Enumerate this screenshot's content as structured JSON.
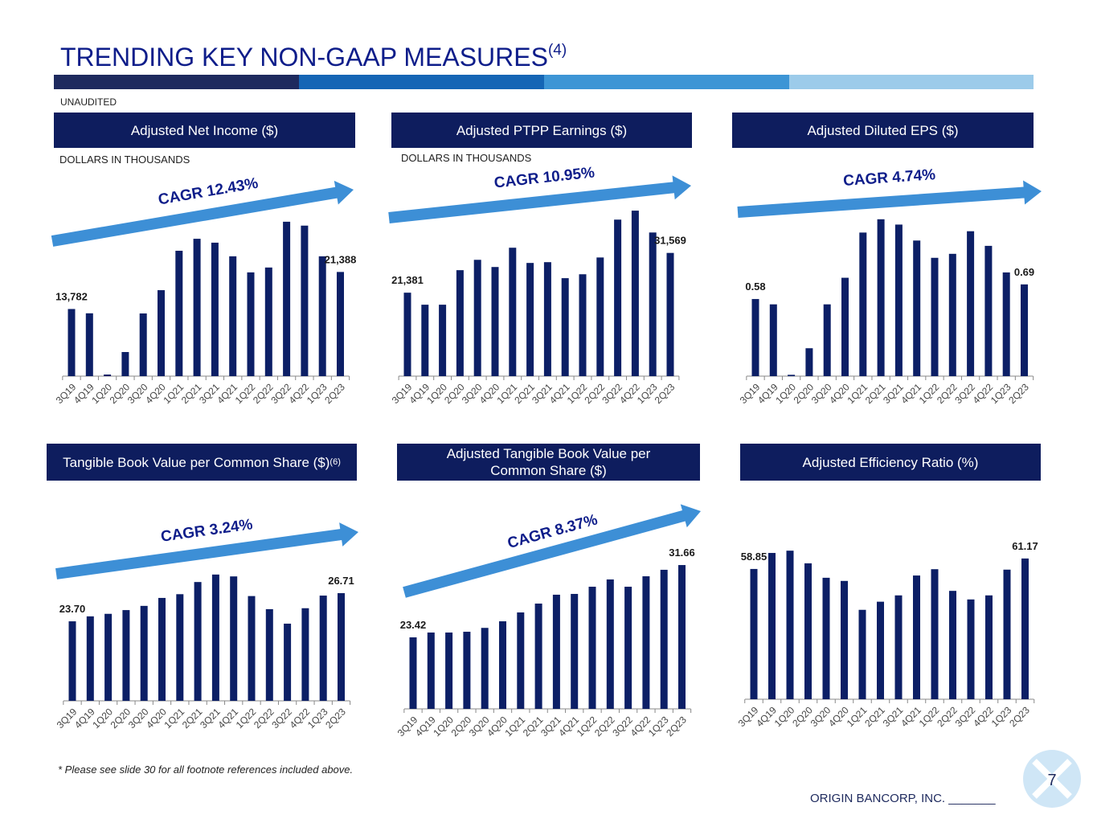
{
  "title": "TRENDING KEY NON-GAAP MEASURES",
  "title_note": "(4)",
  "label": "UNAUDITED",
  "footnote": "* Please see slide 30 for all footnote references included above.",
  "footer": "ORIGIN BANCORP, INC. _______",
  "page_number": "7",
  "chart_data": [
    {
      "type": "bar",
      "title": "Adjusted Net Income ($)",
      "subtitle": "DOLLARS IN THOUSANDS",
      "annotation": "CAGR 12.43%",
      "categories": [
        "3Q19",
        "4Q19",
        "1Q20",
        "2Q20",
        "3Q20",
        "4Q20",
        "1Q21",
        "2Q21",
        "3Q21",
        "4Q21",
        "1Q22",
        "2Q22",
        "3Q22",
        "4Q22",
        "1Q23",
        "2Q23"
      ],
      "values": [
        13782,
        12900,
        330,
        4950,
        12870,
        17650,
        25740,
        28200,
        27400,
        24600,
        21300,
        22300,
        31700,
        30900,
        24600,
        21388
      ],
      "value_labels": [
        "13,782",
        null,
        null,
        null,
        null,
        null,
        null,
        null,
        null,
        null,
        null,
        null,
        null,
        null,
        null,
        "21,388"
      ],
      "color": "#0c1f66",
      "ylim": [
        0,
        36300
      ]
    },
    {
      "type": "bar",
      "title": "Adjusted PTPP Earnings ($)",
      "subtitle": "DOLLARS IN THOUSANDS",
      "annotation": "CAGR 10.95%",
      "categories": [
        "3Q19",
        "4Q19",
        "1Q20",
        "2Q20",
        "3Q20",
        "4Q20",
        "1Q21",
        "2Q21",
        "3Q21",
        "4Q21",
        "1Q22",
        "2Q22",
        "3Q22",
        "4Q22",
        "1Q23",
        "2Q23"
      ],
      "values": [
        21381,
        18300,
        18300,
        27150,
        29800,
        27960,
        32900,
        29000,
        29200,
        25100,
        26100,
        30400,
        40100,
        42400,
        36800,
        31569
      ],
      "value_labels": [
        "21,381",
        null,
        null,
        null,
        null,
        null,
        null,
        null,
        null,
        null,
        null,
        null,
        null,
        null,
        null,
        "31,569"
      ],
      "color": "#0c1f66",
      "ylim": [
        0,
        45300
      ]
    },
    {
      "type": "bar",
      "title": "Adjusted Diluted EPS ($)",
      "annotation": "CAGR 4.74%",
      "categories": [
        "3Q19",
        "4Q19",
        "1Q20",
        "2Q20",
        "3Q20",
        "4Q20",
        "1Q21",
        "2Q21",
        "3Q21",
        "4Q21",
        "1Q22",
        "2Q22",
        "3Q22",
        "4Q22",
        "1Q23",
        "2Q23"
      ],
      "values": [
        0.58,
        0.54,
        0.01,
        0.21,
        0.54,
        0.74,
        1.08,
        1.18,
        1.14,
        1.02,
        0.89,
        0.92,
        1.09,
        0.98,
        0.78,
        0.69
      ],
      "value_labels": [
        "0.58",
        null,
        null,
        null,
        null,
        null,
        null,
        null,
        null,
        null,
        null,
        null,
        null,
        null,
        null,
        "0.69"
      ],
      "color": "#0c1f66",
      "ylim": [
        0,
        1.33
      ]
    },
    {
      "type": "bar",
      "title": "Tangible Book Value per Common Share ($)",
      "title_note": "(6)",
      "annotation": "CAGR 3.24%",
      "categories": [
        "3Q19",
        "4Q19",
        "1Q20",
        "2Q20",
        "3Q20",
        "4Q20",
        "1Q21",
        "2Q21",
        "3Q21",
        "4Q21",
        "1Q22",
        "2Q22",
        "3Q22",
        "4Q22",
        "1Q23",
        "2Q23"
      ],
      "values": [
        23.7,
        24.23,
        24.5,
        24.9,
        25.35,
        26.2,
        26.6,
        27.9,
        28.7,
        28.5,
        26.4,
        25.0,
        23.45,
        25.1,
        26.45,
        26.71
      ],
      "value_labels": [
        "23.70",
        null,
        null,
        null,
        null,
        null,
        null,
        null,
        null,
        null,
        null,
        null,
        null,
        null,
        null,
        "26.71"
      ],
      "color": "#0c1f66",
      "ylim": [
        15.2,
        34.1
      ]
    },
    {
      "type": "bar",
      "title": "Adjusted Tangible Book Value per Common Share ($)",
      "annotation": "CAGR 8.37%",
      "categories": [
        "3Q19",
        "4Q19",
        "1Q20",
        "2Q20",
        "3Q20",
        "4Q20",
        "1Q21",
        "2Q21",
        "3Q21",
        "4Q21",
        "1Q22",
        "2Q22",
        "3Q22",
        "4Q22",
        "1Q23",
        "2Q23"
      ],
      "values": [
        23.42,
        23.97,
        23.97,
        24.06,
        24.5,
        25.25,
        26.26,
        27.27,
        28.28,
        28.37,
        29.19,
        30.02,
        29.19,
        30.38,
        31.12,
        31.66
      ],
      "value_labels": [
        "23.42",
        null,
        null,
        null,
        null,
        null,
        null,
        null,
        null,
        null,
        null,
        null,
        null,
        null,
        null,
        "31.66"
      ],
      "color": "#0c1f66",
      "ylim": [
        15.27,
        35.42
      ]
    },
    {
      "type": "bar",
      "title": "Adjusted Efficiency Ratio (%)",
      "categories": [
        "3Q19",
        "4Q19",
        "1Q20",
        "2Q20",
        "3Q20",
        "4Q20",
        "1Q21",
        "2Q21",
        "3Q21",
        "4Q21",
        "1Q22",
        "2Q22",
        "3Q22",
        "4Q22",
        "1Q23",
        "2Q23"
      ],
      "values": [
        58.85,
        62.4,
        62.9,
        60.1,
        56.9,
        56.2,
        49.8,
        51.6,
        53.0,
        57.4,
        58.8,
        54.0,
        52.1,
        53.0,
        58.7,
        61.17
      ],
      "value_labels": [
        "58.85",
        null,
        null,
        null,
        null,
        null,
        null,
        null,
        null,
        null,
        null,
        null,
        null,
        null,
        null,
        "61.17"
      ],
      "color": "#0c1f66",
      "ylim": [
        30,
        69.16
      ]
    }
  ]
}
